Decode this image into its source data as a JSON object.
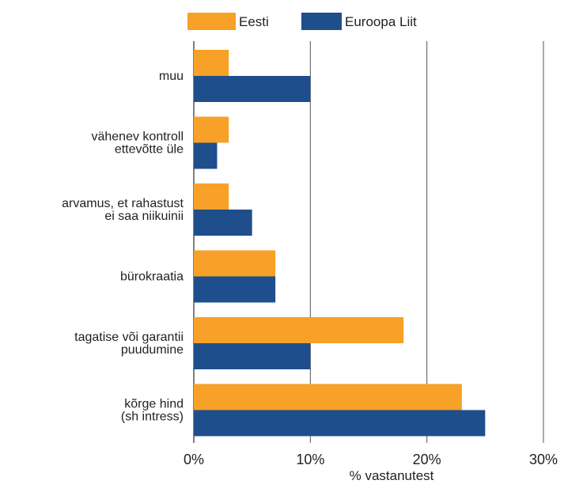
{
  "chart_data": {
    "type": "bar",
    "orientation": "horizontal",
    "categories": [
      [
        "muu"
      ],
      [
        "vähenev kontroll",
        "ettevõtte üle"
      ],
      [
        "arvamus, et rahastust",
        "ei saa niikuinii"
      ],
      [
        "bürokraatia"
      ],
      [
        "tagatise või garantii",
        "puudumine"
      ],
      [
        "kõrge hind",
        "(sh intress)"
      ]
    ],
    "series": [
      {
        "name": "Eesti",
        "color": "#f7a128",
        "values": [
          3,
          3,
          3,
          7,
          18,
          23
        ]
      },
      {
        "name": "Euroopa Liit",
        "color": "#1f4e8c",
        "values": [
          10,
          2,
          5,
          7,
          10,
          25
        ]
      }
    ],
    "xlim": [
      0,
      30
    ],
    "xticks": [
      "0%",
      "10%",
      "20%",
      "30%"
    ],
    "xtick_values": [
      0,
      10,
      20,
      30
    ],
    "xlabel": "% vastanutest",
    "grid": "vertical",
    "legend": "top-center"
  }
}
